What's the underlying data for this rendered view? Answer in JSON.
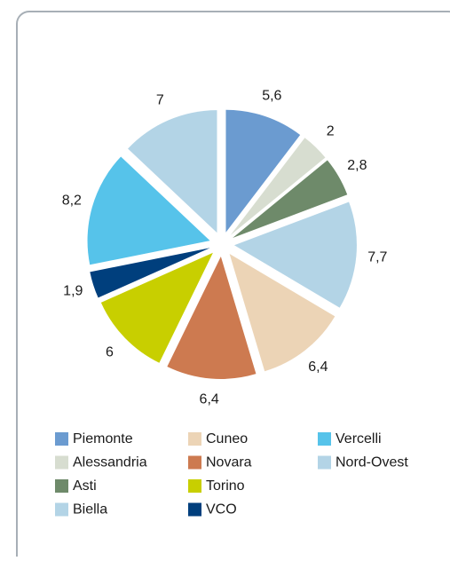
{
  "chart_data": {
    "type": "pie",
    "categories": [
      "Piemonte",
      "Alessandria",
      "Asti",
      "Biella",
      "Cuneo",
      "Novara",
      "Torino",
      "VCO",
      "Vercelli",
      "Nord-Ovest"
    ],
    "values": [
      5.6,
      2,
      2.8,
      7.7,
      6.4,
      6.4,
      6,
      1.9,
      8.2,
      7
    ],
    "value_labels": [
      "5,6",
      "2",
      "2,8",
      "7,7",
      "6,4",
      "6,4",
      "6",
      "1,9",
      "8,2",
      "7"
    ],
    "colors": [
      "#6b9bd0",
      "#d7ddd0",
      "#6e8a6a",
      "#b3d4e6",
      "#ecd4b6",
      "#cd7a50",
      "#c8cf00",
      "#003f7d",
      "#56c3ea",
      "#b3d4e6"
    ]
  }
}
